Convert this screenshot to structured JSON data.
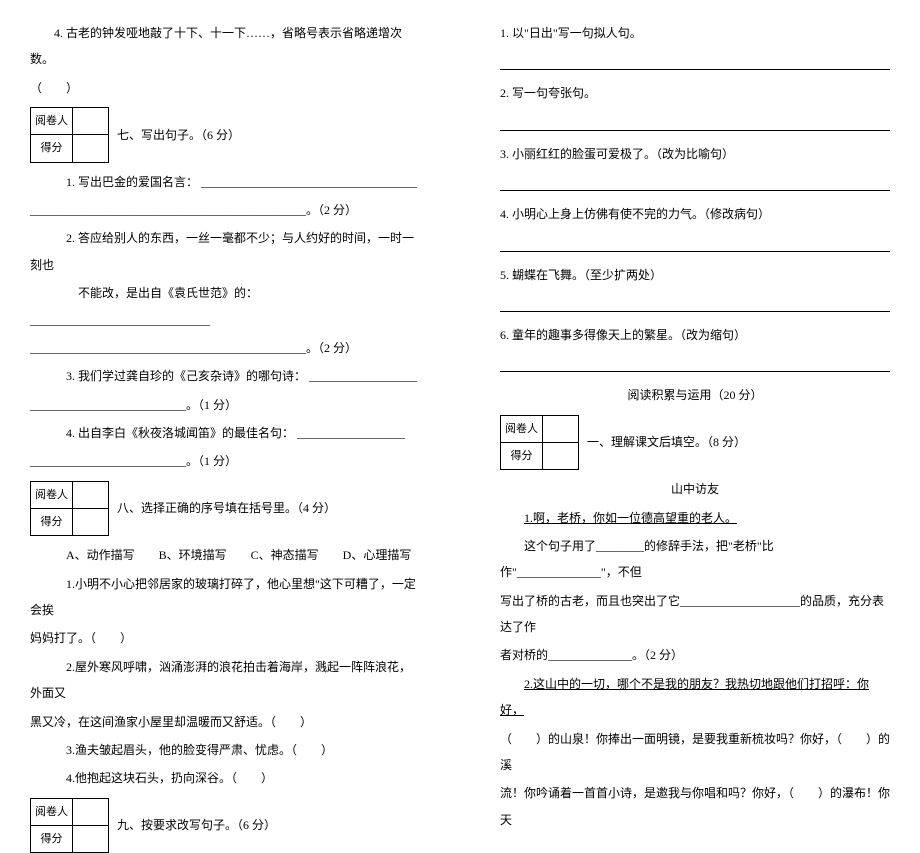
{
  "colors": {
    "text": "#000000",
    "background": "#ffffff",
    "border": "#000000"
  },
  "font": {
    "family": "SimSun",
    "size_pt": 12,
    "line_height": 2.2
  },
  "scorebox": {
    "row1": "阅卷人",
    "row2": "得分"
  },
  "left": {
    "q4_top": "4. 古老的钟发哑地敲了十下、十一下……，省略号表示省略递增次数。",
    "paren": "（　　）",
    "sec7_title": "七、写出句子。（6 分）",
    "s7_1a": "1. 写出巴金的爱国名言：",
    "s7_1b": "。（2 分）",
    "s7_2a": "2. 答应给别人的东西，一丝一毫都不少；与人约好的时间，一时一刻也",
    "s7_2b": "不能改，是出自《袁氏世范》的：",
    "s7_2c": "。（2 分）",
    "s7_3a": "3. 我们学过龚自珍的《己亥杂诗》的哪句诗：",
    "s7_3b": "。（1 分）",
    "s7_4a": "4. 出自李白《秋夜洛城闻笛》的最佳名句：",
    "s7_4b": "。（1 分）",
    "sec8_title": "八、选择正确的序号填在括号里。（4 分）",
    "s8_opts": "A、动作描写　　B、环境描写　　C、神态描写　　D、心理描写",
    "s8_1a": "1.小明不小心把邻居家的玻璃打碎了，他心里想\"这下可糟了，一定会挨",
    "s8_1b": "妈妈打了。（　　）",
    "s8_2a": "2.屋外寒风呼啸，汹涌澎湃的浪花拍击着海岸，溅起一阵阵浪花，外面又",
    "s8_2b": "黑又冷，在这间渔家小屋里却温暖而又舒适。（　　）",
    "s8_3": "3.渔夫皱起眉头，他的脸变得严肃、忧虑。（　　）",
    "s8_4": "4.他抱起这块石头，扔向深谷。（　　）",
    "sec9_title": "九、按要求改写句子。（6 分）"
  },
  "right": {
    "r1": "1. 以\"日出\"写一句拟人句。",
    "r2": "2. 写一句夸张句。",
    "r3": "3. 小丽红红的脸蛋可爱极了。（改为比喻句）",
    "r4": "4. 小明心上身上仿佛有使不完的力气。（修改病句）",
    "r5": "5. 蝴蝶在飞舞。（至少扩两处）",
    "r6": "6. 童年的趣事多得像天上的繁星。（改为缩句）",
    "read_title": "阅读积累与运用（20 分）",
    "sec1_title": "一、理解课文后填空。（8 分）",
    "sub_title": "山中访友",
    "p1": "1.啊，老桥，你如一位德高望重的老人。",
    "p1a": "这个句子用了________的修辞手法，把\"老桥\"比作\"______________\"，不但",
    "p1b": "写出了桥的古老，而且也突出了它____________________的品质，充分表达了作",
    "p1c": "者对桥的______________。（2 分）",
    "p2a": "2.这山中的一切，哪个不是我的朋友？我热切地跟他们打招呼：你好，",
    "p2b": "（　　）的山泉！你捧出一面明镜，是要我重新梳妆吗？你好，（　　）的溪",
    "p2c": "流！你吟诵着一首首小诗，是邀我与你唱和吗？你好，（　　）的瀑布！你天"
  }
}
